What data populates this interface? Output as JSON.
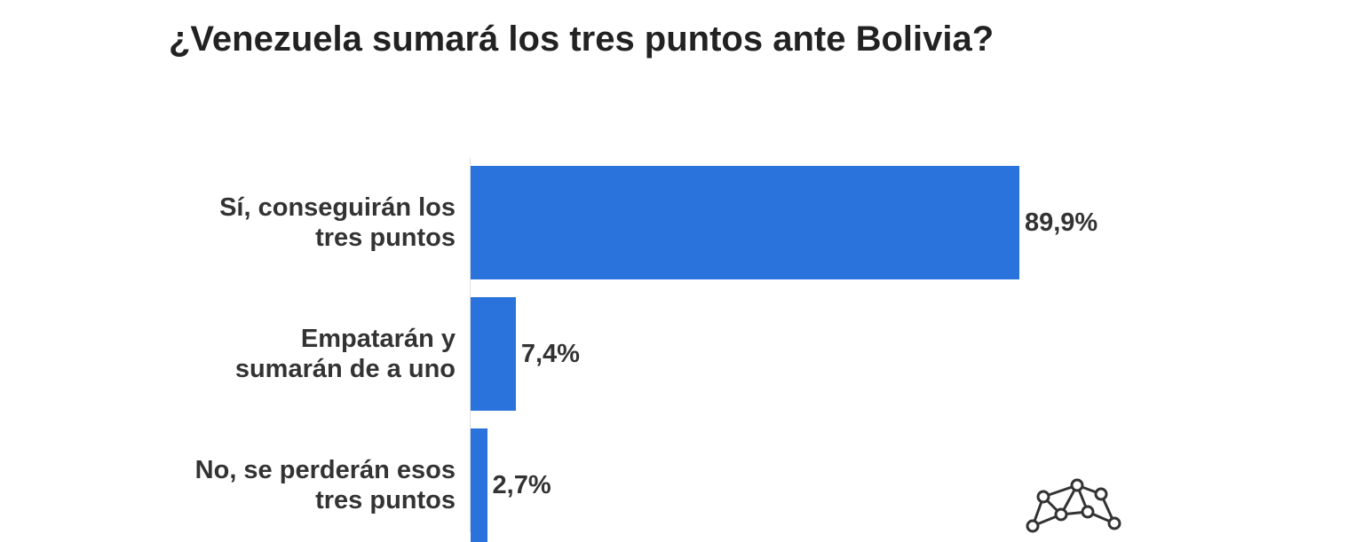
{
  "chart_data": {
    "type": "bar",
    "orientation": "horizontal",
    "title": "¿Venezuela sumará los tres puntos ante Bolivia?",
    "categories": [
      "Sí, conseguirán los\ntres puntos",
      "Empatarán y\nsumarán de a uno",
      "No, se perderán esos\ntres puntos"
    ],
    "values": [
      89.9,
      7.4,
      2.7
    ],
    "value_labels": [
      "89,9%",
      "7,4%",
      "2,7%"
    ],
    "color": "#2a73dc"
  }
}
